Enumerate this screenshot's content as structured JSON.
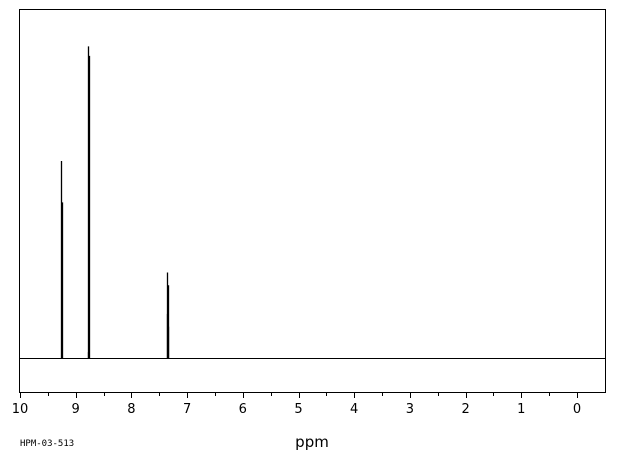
{
  "chart_data": {
    "type": "line",
    "title": "",
    "xlabel": "ppm",
    "ylabel": "",
    "sample_id": "HPM-03-513",
    "xlim": [
      10,
      -0.5
    ],
    "x_reversed": true,
    "ylim": [
      0,
      1.0
    ],
    "grid": false,
    "tick_values": [
      10,
      9,
      8,
      7,
      6,
      5,
      4,
      3,
      2,
      1,
      0
    ],
    "tick_labels": [
      "10",
      "9",
      "8",
      "7",
      "6",
      "5",
      "4",
      "3",
      "2",
      "1",
      "0"
    ],
    "minor_step": 0.5,
    "colors": {
      "line": "#000000",
      "frame": "#000000"
    },
    "series": [
      {
        "peaks": [
          {
            "x": 9.26,
            "y": 0.62
          },
          {
            "x": 9.245,
            "y": 0.49
          },
          {
            "x": 8.785,
            "y": 0.02
          },
          {
            "x": 8.775,
            "y": 0.98
          },
          {
            "x": 8.765,
            "y": 0.95
          },
          {
            "x": 7.365,
            "y": 0.14
          },
          {
            "x": 7.355,
            "y": 0.27
          },
          {
            "x": 7.345,
            "y": 0.23
          },
          {
            "x": 7.335,
            "y": 0.1
          }
        ]
      }
    ]
  }
}
